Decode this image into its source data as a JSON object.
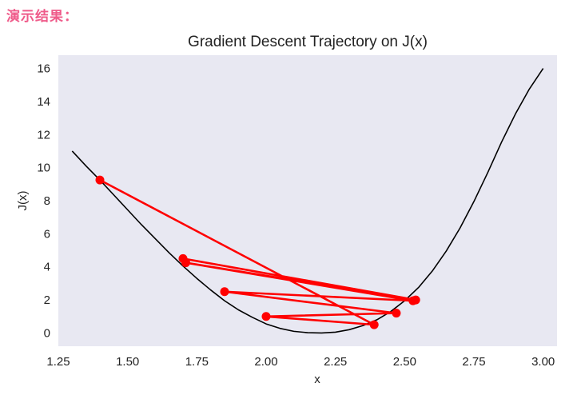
{
  "page": {
    "heading": "演示结果："
  },
  "colors": {
    "plot_bg": "#e8e8f2",
    "curve": "#000000",
    "trajectory": "#ff0000"
  },
  "chart_data": {
    "type": "line",
    "title": "Gradient Descent Trajectory on J(x)",
    "xlabel": "x",
    "ylabel": "J(x)",
    "xlim": [
      1.25,
      3.05
    ],
    "ylim": [
      -0.8,
      16.8
    ],
    "xticks": [
      "1.25",
      "1.50",
      "1.75",
      "2.00",
      "2.25",
      "2.50",
      "2.75",
      "3.00"
    ],
    "yticks": [
      "0",
      "2",
      "4",
      "6",
      "8",
      "10",
      "12",
      "14",
      "16"
    ],
    "grid": false,
    "series": [
      {
        "kind": "curve",
        "x": [
          1.3,
          1.35,
          1.4,
          1.45,
          1.5,
          1.55,
          1.6,
          1.65,
          1.7,
          1.75,
          1.8,
          1.85,
          1.9,
          1.95,
          2.0,
          2.05,
          2.1,
          2.15,
          2.2,
          2.25,
          2.3,
          2.35,
          2.4,
          2.45,
          2.5,
          2.55,
          2.6,
          2.65,
          2.7,
          2.75,
          2.8,
          2.85,
          2.9,
          2.95,
          3.0
        ],
        "y": [
          11.0,
          10.1,
          9.25,
          8.35,
          7.45,
          6.55,
          5.7,
          4.85,
          4.05,
          3.3,
          2.6,
          1.95,
          1.4,
          0.95,
          0.55,
          0.28,
          0.1,
          0.02,
          0.0,
          0.05,
          0.2,
          0.45,
          0.8,
          1.3,
          1.95,
          2.75,
          3.75,
          4.95,
          6.35,
          7.95,
          9.7,
          11.55,
          13.25,
          14.75,
          16.0
        ]
      },
      {
        "kind": "trajectory",
        "x": [
          1.4,
          2.39,
          2.0,
          2.47,
          1.85,
          2.53,
          1.71,
          2.54,
          1.7
        ],
        "y": [
          9.25,
          0.5,
          1.0,
          1.2,
          2.5,
          1.95,
          4.25,
          2.0,
          4.5
        ]
      }
    ]
  }
}
